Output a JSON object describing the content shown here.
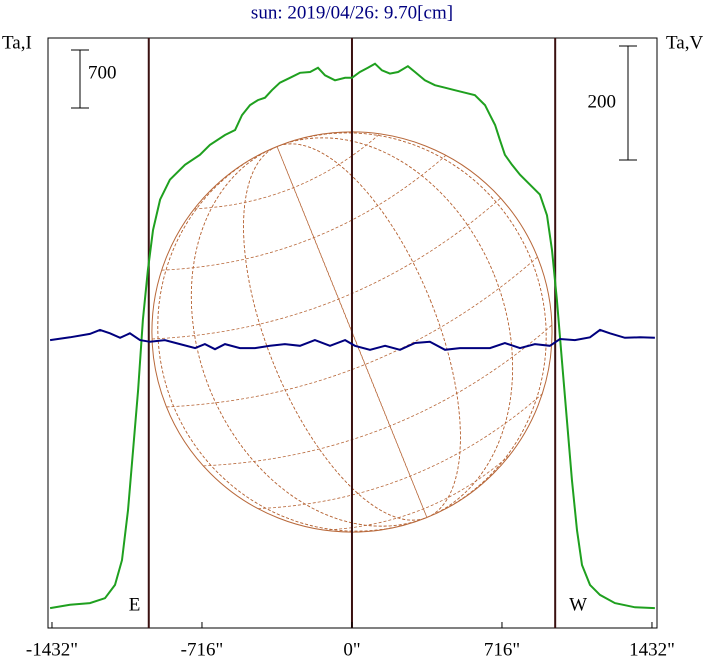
{
  "chart_data": {
    "type": "line",
    "title": "sun: 2019/04/26: 9.70[cm]",
    "y_label": "Ta,I",
    "y2_label": "Ta,V",
    "xlim": [
      -1451,
      1456
    ],
    "xticks": [
      {
        "value": -1432,
        "label": "-1432\""
      },
      {
        "value": -716,
        "label": "-716\""
      },
      {
        "value": 0,
        "label": "0\""
      },
      {
        "value": 716,
        "label": "716\""
      },
      {
        "value": 1432,
        "label": "1432\""
      }
    ],
    "ylim": [
      0,
      7120
    ],
    "y2lim": [
      0,
      1035
    ],
    "scale_bars": [
      {
        "value": 700,
        "axis": "y"
      },
      {
        "value": 200,
        "axis": "y2"
      }
    ],
    "center_line": 0,
    "limbs": [
      {
        "x": -970,
        "label": "E"
      },
      {
        "x": 970,
        "label": "W"
      }
    ],
    "disk_radius": 955,
    "disk_color": "#b8683a",
    "series": [
      {
        "color": "#1fa01f",
        "axis": "y",
        "x": [
          -1441,
          -1346,
          -1251,
          -1179,
          -1131,
          -1098,
          -1069,
          -1045,
          -1021,
          -998,
          -974,
          -950,
          -916,
          -869,
          -797,
          -726,
          -678,
          -606,
          -558,
          -525,
          -487,
          -449,
          -415,
          -382,
          -344,
          -296,
          -248,
          -200,
          -162,
          -129,
          -81,
          -33,
          0,
          38,
          76,
          110,
          143,
          181,
          220,
          267,
          301,
          348,
          396,
          444,
          491,
          539,
          587,
          635,
          659,
          683,
          706,
          730,
          764,
          802,
          850,
          897,
          931,
          955,
          978,
          1002,
          1026,
          1050,
          1074,
          1098,
          1136,
          1184,
          1255,
          1351,
          1446
        ],
        "values": [
          240,
          280,
          300,
          360,
          520,
          820,
          1420,
          2150,
          2870,
          3720,
          4320,
          4800,
          5170,
          5410,
          5590,
          5710,
          5830,
          5950,
          6010,
          6190,
          6310,
          6370,
          6400,
          6490,
          6580,
          6640,
          6700,
          6710,
          6760,
          6670,
          6610,
          6640,
          6640,
          6710,
          6760,
          6810,
          6730,
          6690,
          6710,
          6780,
          6710,
          6610,
          6550,
          6520,
          6490,
          6460,
          6430,
          6310,
          6190,
          6070,
          5890,
          5710,
          5590,
          5470,
          5350,
          5230,
          4980,
          4560,
          3960,
          3230,
          2510,
          1790,
          1180,
          760,
          520,
          400,
          300,
          250,
          240
        ]
      },
      {
        "color": "#00007e",
        "axis": "y2",
        "x": [
          -1441,
          -1346,
          -1251,
          -1203,
          -1155,
          -1107,
          -1060,
          -1012,
          -964,
          -893,
          -821,
          -749,
          -702,
          -654,
          -606,
          -535,
          -463,
          -391,
          -320,
          -248,
          -177,
          -105,
          -33,
          14,
          86,
          158,
          229,
          301,
          372,
          444,
          515,
          587,
          659,
          730,
          802,
          873,
          945,
          993,
          1064,
          1136,
          1184,
          1231,
          1303,
          1375,
          1446
        ],
        "values": [
          505,
          510,
          516,
          523,
          517,
          509,
          517,
          505,
          502,
          505,
          498,
          491,
          498,
          489,
          498,
          491,
          491,
          495,
          498,
          495,
          505,
          495,
          505,
          495,
          488,
          495,
          488,
          500,
          502,
          488,
          491,
          491,
          491,
          500,
          491,
          498,
          495,
          507,
          505,
          510,
          523,
          517,
          509,
          510,
          509
        ]
      }
    ]
  }
}
